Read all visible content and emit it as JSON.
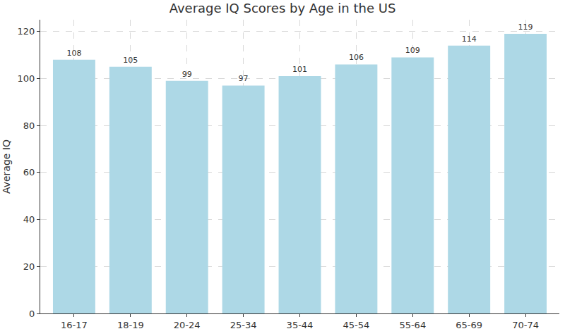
{
  "chart_data": {
    "type": "bar",
    "title": "Average IQ Scores by Age in the US",
    "y_label": "Average IQ",
    "categories": [
      "16-17",
      "18-19",
      "20-24",
      "25-34",
      "35-44",
      "45-54",
      "55-64",
      "65-69",
      "70-74"
    ],
    "values": [
      108,
      105,
      99,
      97,
      101,
      106,
      109,
      114,
      119
    ],
    "color": "#add8e6",
    "ylim": [
      0,
      125
    ],
    "yticks": [
      0,
      20,
      40,
      60,
      80,
      100,
      120
    ],
    "grid": true,
    "data_labels": true
  }
}
